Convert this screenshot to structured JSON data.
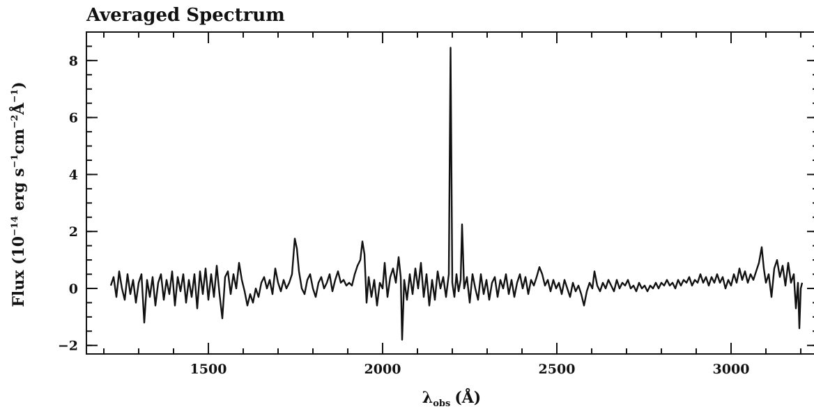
{
  "chart_data": {
    "type": "line",
    "title": "Averaged Spectrum",
    "xlabel": {
      "symbol": "λ",
      "subscript": "obs",
      "unit": "(Å)"
    },
    "ylabel": {
      "prefix": "Flux (10",
      "exp1": "−14",
      "mid1": " erg s",
      "exp2": "−1",
      "mid2": "cm",
      "exp3": "−2",
      "mid3": "Å",
      "exp4": "−1",
      "suffix": ")"
    },
    "xlim": [
      1150,
      3250
    ],
    "ylim": [
      -2.3,
      9.0
    ],
    "x_ticks": [
      {
        "value": 1500,
        "label": "1500"
      },
      {
        "value": 2000,
        "label": "2000"
      },
      {
        "value": 2500,
        "label": "2500"
      },
      {
        "value": 3000,
        "label": "3000"
      }
    ],
    "x_minor_step": 100,
    "y_ticks": [
      {
        "value": -2,
        "label": "−2"
      },
      {
        "value": 0,
        "label": "0"
      },
      {
        "value": 2,
        "label": "2"
      },
      {
        "value": 4,
        "label": "4"
      },
      {
        "value": 6,
        "label": "6"
      },
      {
        "value": 8,
        "label": "8"
      }
    ],
    "y_minor_step": 0.5,
    "grid": false,
    "series": [
      {
        "color": "#111111",
        "points": [
          [
            1220,
            0.1
          ],
          [
            1228,
            0.4
          ],
          [
            1236,
            -0.3
          ],
          [
            1244,
            0.6
          ],
          [
            1252,
            0.0
          ],
          [
            1260,
            -0.4
          ],
          [
            1268,
            0.5
          ],
          [
            1276,
            -0.2
          ],
          [
            1284,
            0.3
          ],
          [
            1292,
            -0.5
          ],
          [
            1300,
            0.2
          ],
          [
            1308,
            0.5
          ],
          [
            1316,
            -1.2
          ],
          [
            1324,
            0.3
          ],
          [
            1332,
            -0.3
          ],
          [
            1340,
            0.4
          ],
          [
            1348,
            -0.6
          ],
          [
            1356,
            0.2
          ],
          [
            1364,
            0.5
          ],
          [
            1372,
            -0.4
          ],
          [
            1380,
            0.3
          ],
          [
            1388,
            -0.2
          ],
          [
            1396,
            0.6
          ],
          [
            1404,
            -0.6
          ],
          [
            1412,
            0.4
          ],
          [
            1420,
            -0.1
          ],
          [
            1428,
            0.5
          ],
          [
            1436,
            -0.5
          ],
          [
            1444,
            0.3
          ],
          [
            1452,
            -0.3
          ],
          [
            1460,
            0.5
          ],
          [
            1468,
            -0.7
          ],
          [
            1476,
            0.6
          ],
          [
            1484,
            -0.2
          ],
          [
            1492,
            0.7
          ],
          [
            1500,
            -0.4
          ],
          [
            1508,
            0.5
          ],
          [
            1516,
            -0.3
          ],
          [
            1524,
            0.8
          ],
          [
            1532,
            -0.2
          ],
          [
            1540,
            -1.05
          ],
          [
            1548,
            0.4
          ],
          [
            1556,
            0.6
          ],
          [
            1564,
            -0.2
          ],
          [
            1572,
            0.5
          ],
          [
            1580,
            0.0
          ],
          [
            1588,
            0.9
          ],
          [
            1596,
            0.3
          ],
          [
            1604,
            -0.1
          ],
          [
            1612,
            -0.6
          ],
          [
            1620,
            -0.2
          ],
          [
            1628,
            -0.5
          ],
          [
            1636,
            0.0
          ],
          [
            1644,
            -0.3
          ],
          [
            1652,
            0.2
          ],
          [
            1660,
            0.4
          ],
          [
            1668,
            0.0
          ],
          [
            1676,
            0.3
          ],
          [
            1684,
            -0.2
          ],
          [
            1692,
            0.7
          ],
          [
            1700,
            0.2
          ],
          [
            1708,
            -0.1
          ],
          [
            1716,
            0.3
          ],
          [
            1724,
            0.0
          ],
          [
            1732,
            0.2
          ],
          [
            1740,
            0.5
          ],
          [
            1748,
            1.75
          ],
          [
            1754,
            1.4
          ],
          [
            1760,
            0.6
          ],
          [
            1768,
            0.0
          ],
          [
            1776,
            -0.2
          ],
          [
            1784,
            0.3
          ],
          [
            1792,
            0.5
          ],
          [
            1800,
            0.0
          ],
          [
            1808,
            -0.3
          ],
          [
            1816,
            0.2
          ],
          [
            1824,
            0.4
          ],
          [
            1832,
            0.0
          ],
          [
            1840,
            0.2
          ],
          [
            1848,
            0.5
          ],
          [
            1856,
            -0.1
          ],
          [
            1864,
            0.3
          ],
          [
            1872,
            0.6
          ],
          [
            1880,
            0.2
          ],
          [
            1888,
            0.3
          ],
          [
            1896,
            0.1
          ],
          [
            1904,
            0.2
          ],
          [
            1912,
            0.1
          ],
          [
            1920,
            0.5
          ],
          [
            1928,
            0.8
          ],
          [
            1936,
            1.0
          ],
          [
            1942,
            1.65
          ],
          [
            1948,
            1.2
          ],
          [
            1954,
            -0.5
          ],
          [
            1960,
            0.4
          ],
          [
            1968,
            -0.3
          ],
          [
            1976,
            0.3
          ],
          [
            1984,
            -0.6
          ],
          [
            1992,
            0.2
          ],
          [
            2000,
            0.0
          ],
          [
            2006,
            0.9
          ],
          [
            2014,
            -0.3
          ],
          [
            2022,
            0.4
          ],
          [
            2030,
            0.7
          ],
          [
            2038,
            0.2
          ],
          [
            2046,
            1.1
          ],
          [
            2052,
            0.4
          ],
          [
            2056,
            -1.8
          ],
          [
            2062,
            0.3
          ],
          [
            2070,
            -0.4
          ],
          [
            2078,
            0.5
          ],
          [
            2086,
            -0.2
          ],
          [
            2094,
            0.7
          ],
          [
            2102,
            0.0
          ],
          [
            2110,
            0.9
          ],
          [
            2118,
            -0.3
          ],
          [
            2126,
            0.5
          ],
          [
            2134,
            -0.6
          ],
          [
            2142,
            0.3
          ],
          [
            2150,
            -0.4
          ],
          [
            2158,
            0.6
          ],
          [
            2166,
            0.0
          ],
          [
            2174,
            0.4
          ],
          [
            2182,
            -0.3
          ],
          [
            2190,
            0.5
          ],
          [
            2195,
            8.45
          ],
          [
            2200,
            0.2
          ],
          [
            2206,
            -0.3
          ],
          [
            2212,
            0.5
          ],
          [
            2218,
            -0.1
          ],
          [
            2224,
            0.3
          ],
          [
            2228,
            2.25
          ],
          [
            2234,
            0.0
          ],
          [
            2242,
            0.4
          ],
          [
            2250,
            -0.5
          ],
          [
            2258,
            0.5
          ],
          [
            2266,
            0.0
          ],
          [
            2274,
            -0.4
          ],
          [
            2282,
            0.5
          ],
          [
            2290,
            -0.2
          ],
          [
            2298,
            0.3
          ],
          [
            2306,
            -0.4
          ],
          [
            2314,
            0.2
          ],
          [
            2322,
            0.4
          ],
          [
            2330,
            -0.3
          ],
          [
            2338,
            0.3
          ],
          [
            2346,
            0.0
          ],
          [
            2354,
            0.5
          ],
          [
            2362,
            -0.2
          ],
          [
            2370,
            0.3
          ],
          [
            2378,
            -0.3
          ],
          [
            2386,
            0.2
          ],
          [
            2394,
            0.5
          ],
          [
            2402,
            0.0
          ],
          [
            2410,
            0.4
          ],
          [
            2418,
            -0.2
          ],
          [
            2426,
            0.3
          ],
          [
            2434,
            0.1
          ],
          [
            2442,
            0.4
          ],
          [
            2450,
            0.75
          ],
          [
            2458,
            0.5
          ],
          [
            2466,
            0.1
          ],
          [
            2474,
            0.3
          ],
          [
            2482,
            -0.1
          ],
          [
            2490,
            0.3
          ],
          [
            2498,
            0.0
          ],
          [
            2506,
            0.2
          ],
          [
            2514,
            -0.2
          ],
          [
            2522,
            0.3
          ],
          [
            2530,
            0.0
          ],
          [
            2538,
            -0.3
          ],
          [
            2546,
            0.2
          ],
          [
            2554,
            -0.1
          ],
          [
            2562,
            0.1
          ],
          [
            2570,
            -0.2
          ],
          [
            2578,
            -0.6
          ],
          [
            2586,
            -0.1
          ],
          [
            2594,
            0.2
          ],
          [
            2602,
            0.0
          ],
          [
            2608,
            0.6
          ],
          [
            2616,
            0.1
          ],
          [
            2624,
            -0.1
          ],
          [
            2632,
            0.2
          ],
          [
            2640,
            0.0
          ],
          [
            2648,
            0.3
          ],
          [
            2656,
            0.1
          ],
          [
            2664,
            -0.1
          ],
          [
            2672,
            0.3
          ],
          [
            2680,
            0.0
          ],
          [
            2688,
            0.2
          ],
          [
            2696,
            0.1
          ],
          [
            2704,
            0.3
          ],
          [
            2712,
            0.0
          ],
          [
            2720,
            0.1
          ],
          [
            2728,
            -0.1
          ],
          [
            2736,
            0.2
          ],
          [
            2744,
            0.0
          ],
          [
            2752,
            0.1
          ],
          [
            2760,
            -0.1
          ],
          [
            2768,
            0.1
          ],
          [
            2776,
            0.0
          ],
          [
            2784,
            0.2
          ],
          [
            2792,
            0.0
          ],
          [
            2800,
            0.2
          ],
          [
            2808,
            0.1
          ],
          [
            2816,
            0.3
          ],
          [
            2824,
            0.1
          ],
          [
            2832,
            0.2
          ],
          [
            2840,
            0.0
          ],
          [
            2848,
            0.3
          ],
          [
            2856,
            0.1
          ],
          [
            2864,
            0.3
          ],
          [
            2872,
            0.2
          ],
          [
            2880,
            0.4
          ],
          [
            2888,
            0.1
          ],
          [
            2896,
            0.3
          ],
          [
            2904,
            0.2
          ],
          [
            2912,
            0.5
          ],
          [
            2920,
            0.2
          ],
          [
            2928,
            0.4
          ],
          [
            2936,
            0.1
          ],
          [
            2944,
            0.4
          ],
          [
            2952,
            0.2
          ],
          [
            2960,
            0.5
          ],
          [
            2968,
            0.2
          ],
          [
            2976,
            0.4
          ],
          [
            2984,
            0.0
          ],
          [
            2992,
            0.3
          ],
          [
            3000,
            0.1
          ],
          [
            3008,
            0.5
          ],
          [
            3016,
            0.2
          ],
          [
            3024,
            0.7
          ],
          [
            3032,
            0.3
          ],
          [
            3040,
            0.6
          ],
          [
            3048,
            0.2
          ],
          [
            3056,
            0.5
          ],
          [
            3064,
            0.3
          ],
          [
            3072,
            0.6
          ],
          [
            3080,
            0.9
          ],
          [
            3088,
            1.45
          ],
          [
            3094,
            0.7
          ],
          [
            3100,
            0.2
          ],
          [
            3108,
            0.5
          ],
          [
            3116,
            -0.3
          ],
          [
            3124,
            0.7
          ],
          [
            3132,
            1.0
          ],
          [
            3140,
            0.4
          ],
          [
            3148,
            0.8
          ],
          [
            3156,
            0.1
          ],
          [
            3164,
            0.9
          ],
          [
            3172,
            0.2
          ],
          [
            3180,
            0.5
          ],
          [
            3186,
            -0.7
          ],
          [
            3192,
            0.2
          ],
          [
            3196,
            -1.4
          ],
          [
            3200,
            0.0
          ],
          [
            3204,
            0.2
          ]
        ]
      }
    ]
  }
}
